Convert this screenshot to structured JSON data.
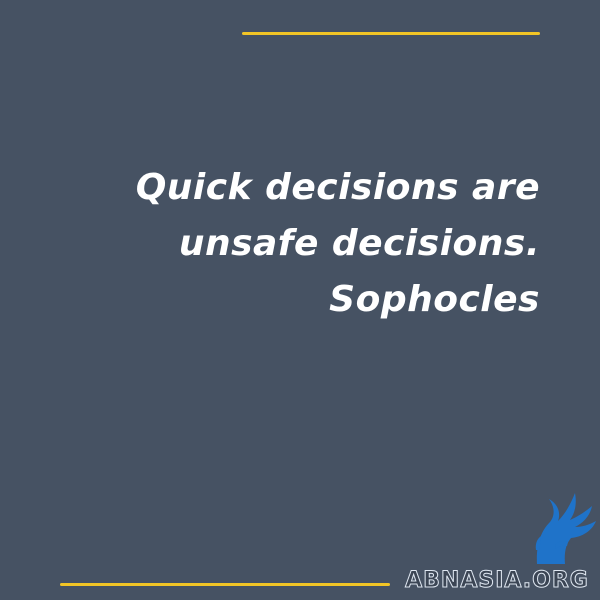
{
  "quote": {
    "lines": [
      "Quick decisions are",
      "unsafe decisions."
    ],
    "author": "Sophocles"
  },
  "brand": {
    "name": "ABNASIA.ORG",
    "logo_icon": "griffin-logo-icon"
  },
  "colors": {
    "background": "#465263",
    "accent": "#f2c526",
    "text": "#ffffff",
    "logo": "#1f73c9"
  }
}
